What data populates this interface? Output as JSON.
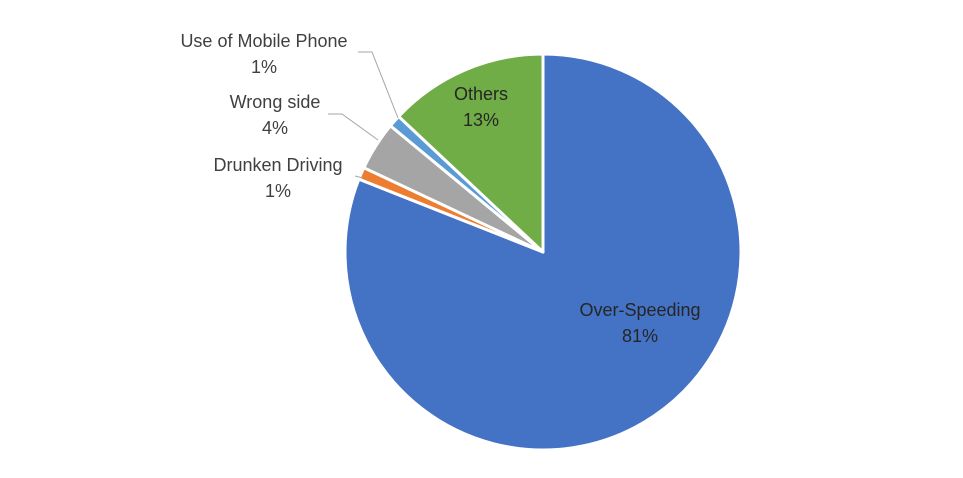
{
  "chart_data": {
    "type": "pie",
    "title": "",
    "slices": [
      {
        "name": "Over-Speeding",
        "value": 81,
        "label": "81%",
        "color": "#4472C4"
      },
      {
        "name": "Drunken Driving",
        "value": 1,
        "label": "1%",
        "color": "#ED7D31"
      },
      {
        "name": "Wrong side",
        "value": 4,
        "label": "4%",
        "color": "#A5A5A5"
      },
      {
        "name": "Use of Mobile Phone",
        "value": 1,
        "label": "1%",
        "color": "#5B9BD5"
      },
      {
        "name": "Others",
        "value": 13,
        "label": "13%",
        "color": "#70AD47"
      }
    ],
    "start_angle": "12 o'clock",
    "direction": "clockwise",
    "legend": "none"
  }
}
